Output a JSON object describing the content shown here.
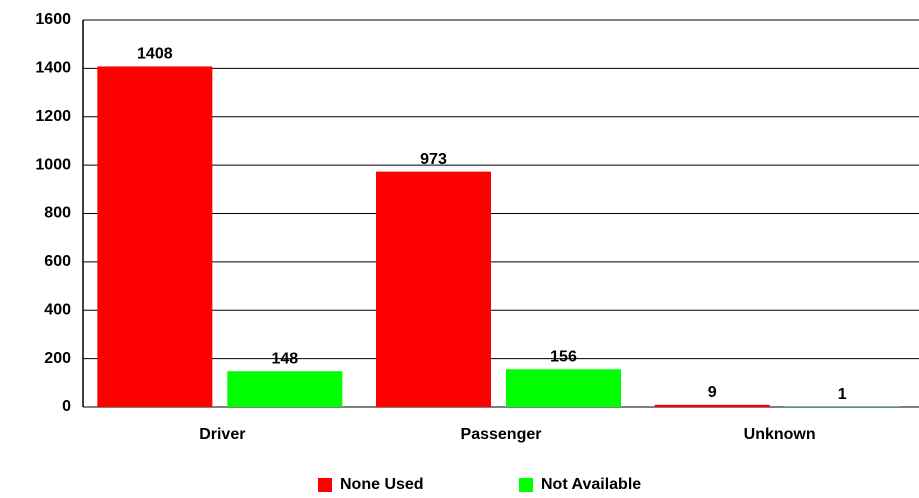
{
  "chart_data": {
    "type": "bar",
    "categories": [
      "Driver",
      "Passenger",
      "Unknown"
    ],
    "series": [
      {
        "name": "None Used",
        "color": "#ff0000",
        "values": [
          1408,
          973,
          9
        ]
      },
      {
        "name": "Not Available",
        "color": "#00ff00",
        "values": [
          148,
          156,
          1
        ]
      }
    ],
    "ylim": [
      0,
      1600
    ],
    "yticks": [
      0,
      200,
      400,
      600,
      800,
      1000,
      1200,
      1400,
      1600
    ],
    "grid": true,
    "legend": "bottom"
  }
}
